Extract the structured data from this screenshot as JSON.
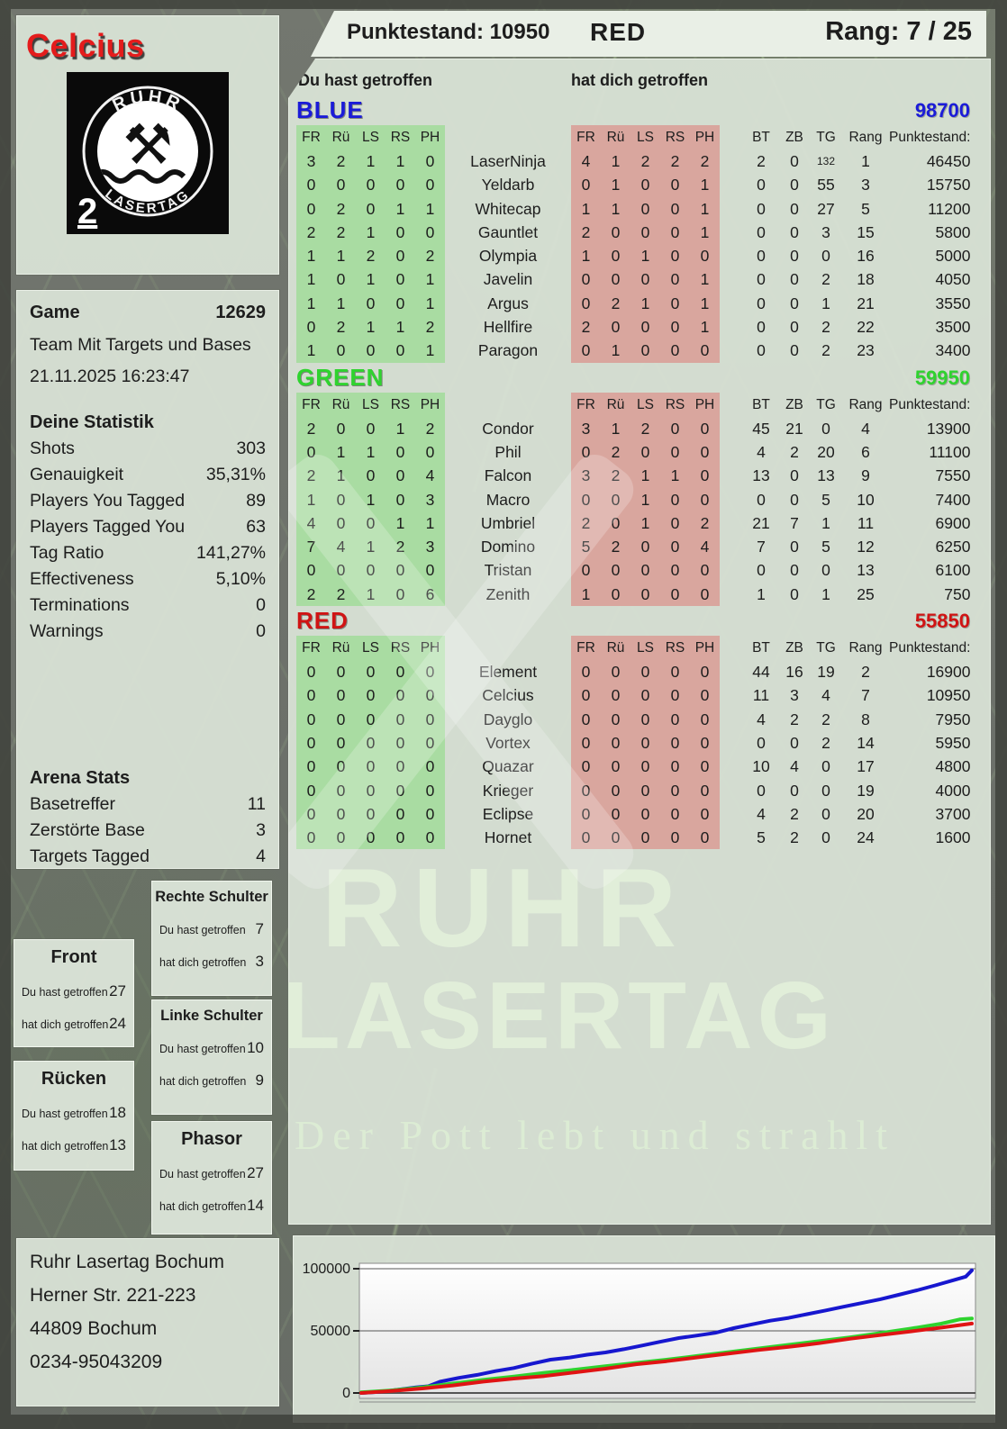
{
  "header": {
    "player_name": "Celcius",
    "punktestand": "Punktestand: 10950",
    "team": "RED",
    "rang": "Rang: 7 / 25"
  },
  "logo": {
    "arc_top": "RUHR",
    "arc_bottom": "LASERTAG",
    "corner_number": "2"
  },
  "game_info": {
    "label": "Game",
    "number": "12629",
    "mode": "Team Mit Targets und Bases",
    "datetime": "21.11.2025 16:23:47"
  },
  "your_stats": {
    "title": "Deine Statistik",
    "rows": [
      {
        "label": "Shots",
        "value": "303"
      },
      {
        "label": "Genauigkeit",
        "value": "35,31%"
      },
      {
        "label": "Players You Tagged",
        "value": "89"
      },
      {
        "label": "Players Tagged You",
        "value": "63"
      },
      {
        "label": "Tag Ratio",
        "value": "141,27%"
      },
      {
        "label": "Effectiveness",
        "value": "5,10%"
      },
      {
        "label": "Terminations",
        "value": "0"
      },
      {
        "label": "Warnings",
        "value": "0"
      }
    ]
  },
  "arena_stats": {
    "title": "Arena Stats",
    "rows": [
      {
        "label": "Basetreffer",
        "value": "11"
      },
      {
        "label": "Zerstörte Base",
        "value": "3"
      },
      {
        "label": "Targets Tagged",
        "value": "4"
      }
    ]
  },
  "hit_labels": {
    "you": "Du hast getroffen",
    "them": "hat dich getroffen"
  },
  "hitzones": [
    {
      "title": "Rechte Schulter",
      "you": "7",
      "them": "3"
    },
    {
      "title": "Front",
      "you": "27",
      "them": "24"
    },
    {
      "title": "Linke Schulter",
      "you": "10",
      "them": "9"
    },
    {
      "title": "Rücken",
      "you": "18",
      "them": "13"
    },
    {
      "title": "Phasor",
      "you": "27",
      "them": "14"
    }
  ],
  "scoreboard": {
    "you_header": "Du hast getroffen",
    "them_header": "hat dich getroffen",
    "zone_cols": [
      "FR",
      "Rü",
      "LS",
      "RS",
      "PH"
    ],
    "stat_cols": [
      "BT",
      "ZB",
      "TG",
      "Rang",
      "Punktestand:"
    ],
    "teams": [
      {
        "name": "BLUE",
        "total": "98700",
        "color": "#1b1bd8",
        "rows": [
          {
            "you": [
              "3",
              "2",
              "1",
              "1",
              "0"
            ],
            "name": "LaserNinja",
            "them": [
              "4",
              "1",
              "2",
              "2",
              "2"
            ],
            "stats": [
              "2",
              "0",
              "132",
              "1",
              "46450"
            ]
          },
          {
            "you": [
              "0",
              "0",
              "0",
              "0",
              "0"
            ],
            "name": "Yeldarb",
            "them": [
              "0",
              "1",
              "0",
              "0",
              "1"
            ],
            "stats": [
              "0",
              "0",
              "55",
              "3",
              "15750"
            ]
          },
          {
            "you": [
              "0",
              "2",
              "0",
              "1",
              "1"
            ],
            "name": "Whitecap",
            "them": [
              "1",
              "1",
              "0",
              "0",
              "1"
            ],
            "stats": [
              "0",
              "0",
              "27",
              "5",
              "11200"
            ]
          },
          {
            "you": [
              "2",
              "2",
              "1",
              "0",
              "0"
            ],
            "name": "Gauntlet",
            "them": [
              "2",
              "0",
              "0",
              "0",
              "1"
            ],
            "stats": [
              "0",
              "0",
              "3",
              "15",
              "5800"
            ]
          },
          {
            "you": [
              "1",
              "1",
              "2",
              "0",
              "2"
            ],
            "name": "Olympia",
            "them": [
              "1",
              "0",
              "1",
              "0",
              "0"
            ],
            "stats": [
              "0",
              "0",
              "0",
              "16",
              "5000"
            ]
          },
          {
            "you": [
              "1",
              "0",
              "1",
              "0",
              "1"
            ],
            "name": "Javelin",
            "them": [
              "0",
              "0",
              "0",
              "0",
              "1"
            ],
            "stats": [
              "0",
              "0",
              "2",
              "18",
              "4050"
            ]
          },
          {
            "you": [
              "1",
              "1",
              "0",
              "0",
              "1"
            ],
            "name": "Argus",
            "them": [
              "0",
              "2",
              "1",
              "0",
              "1"
            ],
            "stats": [
              "0",
              "0",
              "1",
              "21",
              "3550"
            ]
          },
          {
            "you": [
              "0",
              "2",
              "1",
              "1",
              "2"
            ],
            "name": "Hellfire",
            "them": [
              "2",
              "0",
              "0",
              "0",
              "1"
            ],
            "stats": [
              "0",
              "0",
              "2",
              "22",
              "3500"
            ]
          },
          {
            "you": [
              "1",
              "0",
              "0",
              "0",
              "1"
            ],
            "name": "Paragon",
            "them": [
              "0",
              "1",
              "0",
              "0",
              "0"
            ],
            "stats": [
              "0",
              "0",
              "2",
              "23",
              "3400"
            ]
          }
        ]
      },
      {
        "name": "GREEN",
        "total": "59950",
        "color": "#2fd32f",
        "rows": [
          {
            "you": [
              "2",
              "0",
              "0",
              "1",
              "2"
            ],
            "name": "Condor",
            "them": [
              "3",
              "1",
              "2",
              "0",
              "0"
            ],
            "stats": [
              "45",
              "21",
              "0",
              "4",
              "13900"
            ]
          },
          {
            "you": [
              "0",
              "1",
              "1",
              "0",
              "0"
            ],
            "name": "Phil",
            "them": [
              "0",
              "2",
              "0",
              "0",
              "0"
            ],
            "stats": [
              "4",
              "2",
              "20",
              "6",
              "11100"
            ]
          },
          {
            "you": [
              "2",
              "1",
              "0",
              "0",
              "4"
            ],
            "name": "Falcon",
            "them": [
              "3",
              "2",
              "1",
              "1",
              "0"
            ],
            "stats": [
              "13",
              "0",
              "13",
              "9",
              "7550"
            ]
          },
          {
            "you": [
              "1",
              "0",
              "1",
              "0",
              "3"
            ],
            "name": "Macro",
            "them": [
              "0",
              "0",
              "1",
              "0",
              "0"
            ],
            "stats": [
              "0",
              "0",
              "5",
              "10",
              "7400"
            ]
          },
          {
            "you": [
              "4",
              "0",
              "0",
              "1",
              "1"
            ],
            "name": "Umbriel",
            "them": [
              "2",
              "0",
              "1",
              "0",
              "2"
            ],
            "stats": [
              "21",
              "7",
              "1",
              "11",
              "6900"
            ]
          },
          {
            "you": [
              "7",
              "4",
              "1",
              "2",
              "3"
            ],
            "name": "Domino",
            "them": [
              "5",
              "2",
              "0",
              "0",
              "4"
            ],
            "stats": [
              "7",
              "0",
              "5",
              "12",
              "6250"
            ]
          },
          {
            "you": [
              "0",
              "0",
              "0",
              "0",
              "0"
            ],
            "name": "Tristan",
            "them": [
              "0",
              "0",
              "0",
              "0",
              "0"
            ],
            "stats": [
              "0",
              "0",
              "0",
              "13",
              "6100"
            ]
          },
          {
            "you": [
              "2",
              "2",
              "1",
              "0",
              "6"
            ],
            "name": "Zenith",
            "them": [
              "1",
              "0",
              "0",
              "0",
              "0"
            ],
            "stats": [
              "1",
              "0",
              "1",
              "25",
              "750"
            ]
          }
        ]
      },
      {
        "name": "RED",
        "total": "55850",
        "color": "#d01414",
        "rows": [
          {
            "you": [
              "0",
              "0",
              "0",
              "0",
              "0"
            ],
            "name": "Element",
            "them": [
              "0",
              "0",
              "0",
              "0",
              "0"
            ],
            "stats": [
              "44",
              "16",
              "19",
              "2",
              "16900"
            ]
          },
          {
            "you": [
              "0",
              "0",
              "0",
              "0",
              "0"
            ],
            "name": "Celcius",
            "them": [
              "0",
              "0",
              "0",
              "0",
              "0"
            ],
            "stats": [
              "11",
              "3",
              "4",
              "7",
              "10950"
            ]
          },
          {
            "you": [
              "0",
              "0",
              "0",
              "0",
              "0"
            ],
            "name": "Dayglo",
            "them": [
              "0",
              "0",
              "0",
              "0",
              "0"
            ],
            "stats": [
              "4",
              "2",
              "2",
              "8",
              "7950"
            ]
          },
          {
            "you": [
              "0",
              "0",
              "0",
              "0",
              "0"
            ],
            "name": "Vortex",
            "them": [
              "0",
              "0",
              "0",
              "0",
              "0"
            ],
            "stats": [
              "0",
              "0",
              "2",
              "14",
              "5950"
            ]
          },
          {
            "you": [
              "0",
              "0",
              "0",
              "0",
              "0"
            ],
            "name": "Quazar",
            "them": [
              "0",
              "0",
              "0",
              "0",
              "0"
            ],
            "stats": [
              "10",
              "4",
              "0",
              "17",
              "4800"
            ]
          },
          {
            "you": [
              "0",
              "0",
              "0",
              "0",
              "0"
            ],
            "name": "Krieger",
            "them": [
              "0",
              "0",
              "0",
              "0",
              "0"
            ],
            "stats": [
              "0",
              "0",
              "0",
              "19",
              "4000"
            ]
          },
          {
            "you": [
              "0",
              "0",
              "0",
              "0",
              "0"
            ],
            "name": "Eclipse",
            "them": [
              "0",
              "0",
              "0",
              "0",
              "0"
            ],
            "stats": [
              "4",
              "2",
              "0",
              "20",
              "3700"
            ]
          },
          {
            "you": [
              "0",
              "0",
              "0",
              "0",
              "0"
            ],
            "name": "Hornet",
            "them": [
              "0",
              "0",
              "0",
              "0",
              "0"
            ],
            "stats": [
              "5",
              "2",
              "0",
              "24",
              "1600"
            ]
          }
        ]
      }
    ]
  },
  "watermark": {
    "line1": "RUHR",
    "line2": "LASERTAG",
    "line3": "Der Pott lebt und strahlt"
  },
  "footer": {
    "lines": [
      "Ruhr Lasertag Bochum",
      "Herner Str. 221-223",
      "44809 Bochum",
      "0234-95043209"
    ]
  },
  "chart_data": {
    "type": "line",
    "title": "",
    "xlabel": "",
    "ylabel": "",
    "ylim": [
      0,
      100000
    ],
    "yticks": [
      0,
      50000,
      100000
    ],
    "grid": true,
    "legend": "none",
    "series": [
      {
        "name": "BLUE",
        "color": "#1717cf",
        "points": [
          [
            0,
            0
          ],
          [
            0.03,
            900
          ],
          [
            0.06,
            2600
          ],
          [
            0.09,
            4600
          ],
          [
            0.11,
            5400
          ],
          [
            0.13,
            9200
          ],
          [
            0.16,
            12200
          ],
          [
            0.19,
            14600
          ],
          [
            0.22,
            17600
          ],
          [
            0.25,
            20100
          ],
          [
            0.28,
            23600
          ],
          [
            0.31,
            26800
          ],
          [
            0.34,
            28400
          ],
          [
            0.37,
            30800
          ],
          [
            0.4,
            32600
          ],
          [
            0.43,
            35200
          ],
          [
            0.46,
            38200
          ],
          [
            0.49,
            41200
          ],
          [
            0.52,
            44200
          ],
          [
            0.55,
            46200
          ],
          [
            0.58,
            48400
          ],
          [
            0.61,
            52200
          ],
          [
            0.64,
            55200
          ],
          [
            0.67,
            58200
          ],
          [
            0.7,
            60400
          ],
          [
            0.73,
            63400
          ],
          [
            0.76,
            66400
          ],
          [
            0.79,
            69400
          ],
          [
            0.82,
            72400
          ],
          [
            0.85,
            75400
          ],
          [
            0.88,
            79000
          ],
          [
            0.91,
            82600
          ],
          [
            0.94,
            86600
          ],
          [
            0.97,
            90800
          ],
          [
            0.99,
            93600
          ],
          [
            1,
            98700
          ]
        ]
      },
      {
        "name": "GREEN",
        "color": "#2ed32e",
        "points": [
          [
            0,
            600
          ],
          [
            0.05,
            2100
          ],
          [
            0.1,
            4600
          ],
          [
            0.15,
            7600
          ],
          [
            0.2,
            10600
          ],
          [
            0.25,
            13200
          ],
          [
            0.3,
            16200
          ],
          [
            0.35,
            18800
          ],
          [
            0.4,
            21600
          ],
          [
            0.45,
            24200
          ],
          [
            0.5,
            26800
          ],
          [
            0.55,
            29800
          ],
          [
            0.6,
            32800
          ],
          [
            0.65,
            35800
          ],
          [
            0.7,
            38800
          ],
          [
            0.75,
            41800
          ],
          [
            0.8,
            44800
          ],
          [
            0.85,
            48200
          ],
          [
            0.9,
            51800
          ],
          [
            0.95,
            55800
          ],
          [
            0.98,
            59200
          ],
          [
            1,
            59950
          ]
        ]
      },
      {
        "name": "RED",
        "color": "#e01414",
        "points": [
          [
            0,
            0
          ],
          [
            0.05,
            1600
          ],
          [
            0.1,
            3600
          ],
          [
            0.15,
            6100
          ],
          [
            0.2,
            9100
          ],
          [
            0.25,
            11600
          ],
          [
            0.3,
            13600
          ],
          [
            0.35,
            16600
          ],
          [
            0.4,
            19600
          ],
          [
            0.45,
            23100
          ],
          [
            0.5,
            25600
          ],
          [
            0.55,
            28600
          ],
          [
            0.6,
            31600
          ],
          [
            0.65,
            34600
          ],
          [
            0.7,
            37100
          ],
          [
            0.75,
            40100
          ],
          [
            0.8,
            43600
          ],
          [
            0.85,
            46600
          ],
          [
            0.9,
            49600
          ],
          [
            0.95,
            52600
          ],
          [
            1,
            55850
          ]
        ]
      }
    ]
  }
}
